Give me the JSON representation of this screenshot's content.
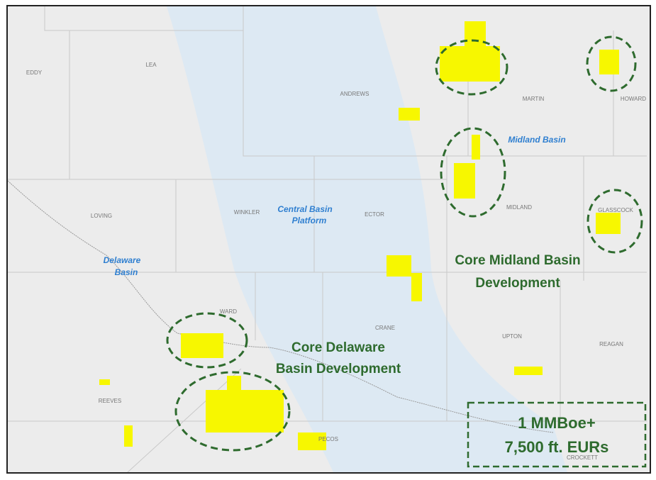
{
  "counties": [
    "EDDY",
    "LEA",
    "ANDREWS",
    "MARTIN",
    "HOWARD",
    "LOVING",
    "WINKLER",
    "ECTOR",
    "MIDLAND",
    "GLASSCOCK",
    "WARD",
    "CRANE",
    "UPTON",
    "REAGAN",
    "REEVES",
    "PECOS",
    "CROCKETT"
  ],
  "basins": [
    {
      "lines": [
        "Midland Basin"
      ]
    },
    {
      "lines": [
        "Central Basin",
        "Platform"
      ]
    },
    {
      "lines": [
        "Delaware",
        "Basin"
      ]
    }
  ],
  "developments": [
    {
      "lines": [
        "Core Midland Basin",
        "Development"
      ]
    },
    {
      "lines": [
        "Core Delaware",
        "Basin Development"
      ]
    }
  ],
  "callout": {
    "lines": [
      "1 MMBoe+",
      "7,500 ft. EURs"
    ]
  }
}
